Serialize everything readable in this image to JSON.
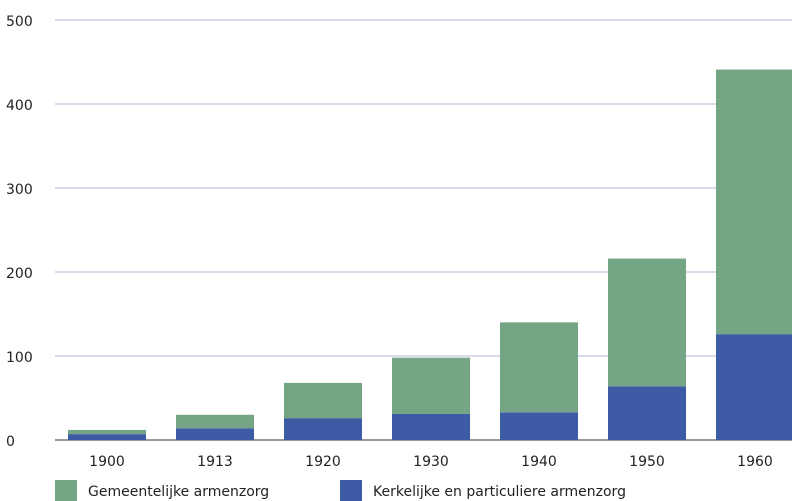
{
  "chart_data": {
    "type": "stacked_bar",
    "categories": [
      "1900",
      "1913",
      "1920",
      "1930",
      "1940",
      "1950",
      "1960"
    ],
    "series": [
      {
        "name": "Kerkelijke en particuliere armenzorg",
        "color": "#3d5aa5",
        "values": [
          7,
          14,
          26,
          31,
          33,
          64,
          126
        ]
      },
      {
        "name": "Gemeentelijke armenzorg",
        "color": "#74a584",
        "values": [
          5,
          16,
          42,
          67,
          107,
          152,
          315
        ]
      }
    ],
    "ylim": [
      0,
      500
    ],
    "yticks": [
      0,
      100,
      200,
      300,
      400,
      500
    ],
    "grid": true,
    "legend": "bottom"
  }
}
